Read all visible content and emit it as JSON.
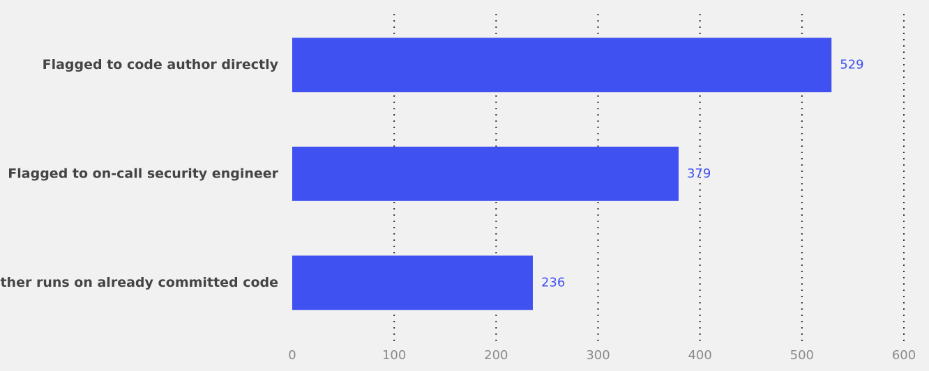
{
  "chart_data": {
    "type": "bar",
    "orientation": "horizontal",
    "categories": [
      "Flagged to code author directly",
      "Flagged to on-call security engineer",
      "Other runs on already committed code"
    ],
    "values": [
      529,
      379,
      236
    ],
    "color": "#3f51f0",
    "xlim": [
      0,
      600
    ],
    "xticks": [
      0,
      100,
      200,
      300,
      400,
      500,
      600
    ],
    "grid": true
  }
}
